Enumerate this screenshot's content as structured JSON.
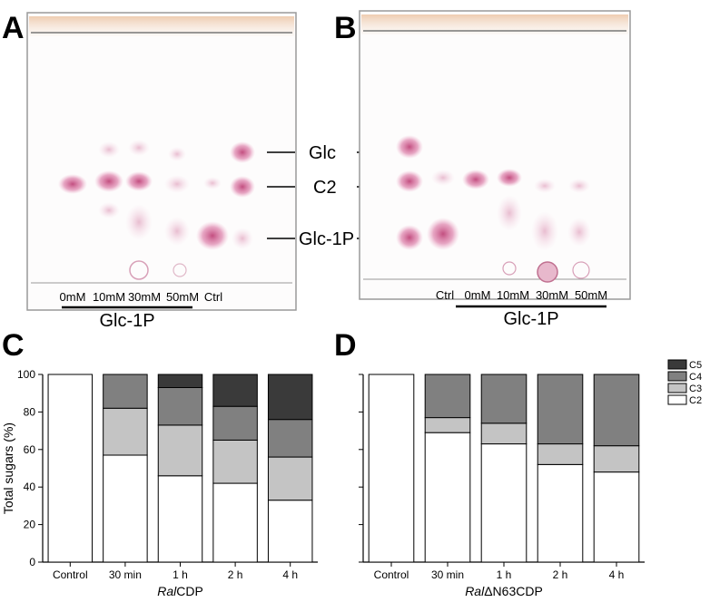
{
  "panels": {
    "A": {
      "letter": "A",
      "lanes": [
        "0mM",
        "10mM",
        "30mM",
        "50mM",
        "Ctrl"
      ],
      "group_label": "Glc-1P",
      "markers": [
        "Glc",
        "C2",
        "Glc-1P"
      ]
    },
    "B": {
      "letter": "B",
      "lanes": [
        "Ctrl",
        "0mM",
        "10mM",
        "30mM",
        "50mM"
      ],
      "group_label": "Glc-1P"
    },
    "C": {
      "letter": "C"
    },
    "D": {
      "letter": "D"
    }
  },
  "colors": {
    "C5": "#3a3a3a",
    "C4": "#808080",
    "C3": "#c4c4c4",
    "C2": "#ffffff",
    "tlc_spot": "#c0306e"
  },
  "chart_data": [
    {
      "type": "bar",
      "stacked": true,
      "panel": "C",
      "categories": [
        "Control",
        "30 min",
        "1 h",
        "2 h",
        "4 h"
      ],
      "xlabel_prefix": "Ral",
      "xlabel_suffix": "CDP",
      "ylabel": "Total sugars (%)",
      "ylim": [
        0,
        100
      ],
      "yticks": [
        "0",
        "20",
        "40",
        "60",
        "80",
        "100"
      ],
      "series": [
        {
          "name": "C2",
          "values": [
            100,
            57,
            46,
            42,
            33
          ]
        },
        {
          "name": "C3",
          "values": [
            0,
            25,
            27,
            23,
            23
          ]
        },
        {
          "name": "C4",
          "values": [
            0,
            18,
            20,
            18,
            20
          ]
        },
        {
          "name": "C5",
          "values": [
            0,
            0,
            7,
            17,
            24
          ]
        }
      ],
      "legend": false
    },
    {
      "type": "bar",
      "stacked": true,
      "panel": "D",
      "categories": [
        "Control",
        "30 min",
        "1 h",
        "2 h",
        "4 h"
      ],
      "xlabel_prefix": "Ral",
      "xlabel_suffix": "ΔN63CDP",
      "ylim": [
        0,
        100
      ],
      "series": [
        {
          "name": "C2",
          "values": [
            100,
            69,
            63,
            52,
            48
          ]
        },
        {
          "name": "C3",
          "values": [
            0,
            8,
            11,
            11,
            14
          ]
        },
        {
          "name": "C4",
          "values": [
            0,
            23,
            26,
            37,
            38
          ]
        },
        {
          "name": "C5",
          "values": [
            0,
            0,
            0,
            0,
            0
          ]
        }
      ],
      "legend": true,
      "legend_position": "top-right",
      "legend_order": [
        "C5",
        "C4",
        "C3",
        "C2"
      ]
    }
  ]
}
